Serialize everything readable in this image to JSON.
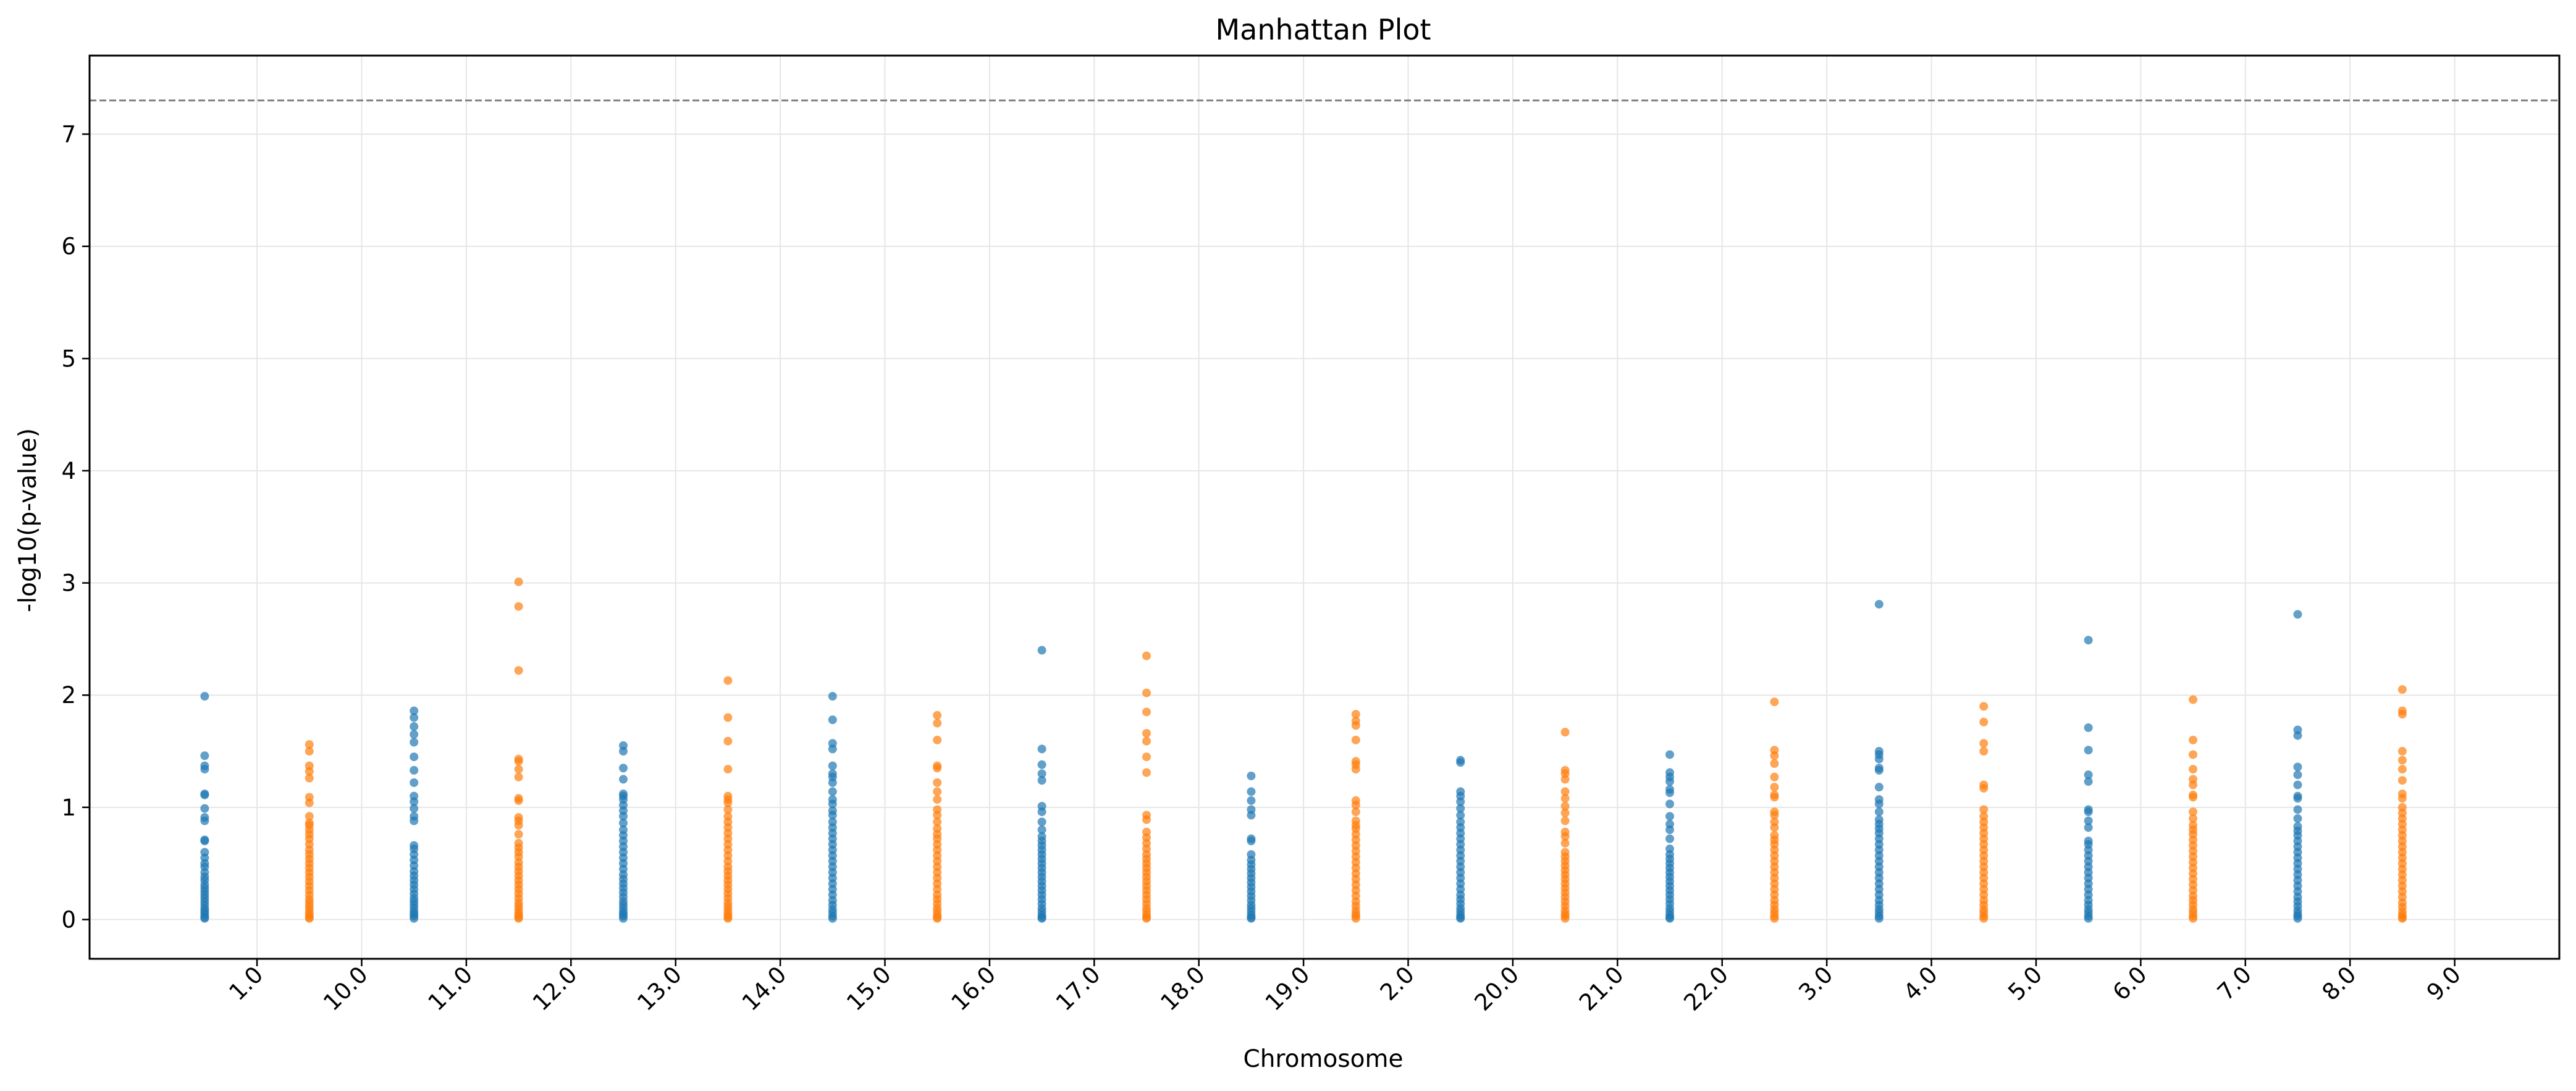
{
  "chart_data": {
    "type": "scatter",
    "title": "Manhattan Plot",
    "xlabel": "Chromosome",
    "ylabel": "-log10(p-value)",
    "x_tick_labels": [
      "1.0",
      "10.0",
      "11.0",
      "12.0",
      "13.0",
      "14.0",
      "15.0",
      "16.0",
      "17.0",
      "18.0",
      "19.0",
      "2.0",
      "20.0",
      "21.0",
      "22.0",
      "3.0",
      "4.0",
      "5.0",
      "6.0",
      "7.0",
      "8.0",
      "9.0"
    ],
    "x_tick_values": [
      1.5,
      2.5,
      3.5,
      4.5,
      5.5,
      6.5,
      7.5,
      8.5,
      9.5,
      10.5,
      11.5,
      12.5,
      13.5,
      14.5,
      15.5,
      16.5,
      17.5,
      18.5,
      19.5,
      20.5,
      21.5,
      22.5
    ],
    "y_ticks": [
      0,
      1,
      2,
      3,
      4,
      5,
      6,
      7
    ],
    "xlim": [
      -0.1,
      23.5
    ],
    "ylim": [
      -0.35,
      7.7
    ],
    "threshold": 7.3,
    "grid": true,
    "colors": {
      "even": "#1f77b4",
      "odd": "#ff7f0e",
      "threshold": "#808080",
      "grid": "#e6e6e6"
    },
    "series": [
      {
        "name": "1",
        "x": 1,
        "color_key": "even",
        "values": [
          1.99,
          1.46,
          1.37,
          1.34,
          1.12,
          1.11,
          0.99,
          0.91,
          0.88,
          0.71,
          0.7,
          0.6,
          0.55,
          0.5,
          0.47,
          0.42,
          0.38,
          0.35,
          0.31,
          0.28,
          0.25,
          0.22,
          0.19,
          0.16,
          0.13,
          0.1,
          0.08,
          0.06,
          0.04,
          0.02,
          0.01
        ]
      },
      {
        "name": "10",
        "x": 2,
        "color_key": "odd",
        "values": [
          1.56,
          1.5,
          1.37,
          1.32,
          1.26,
          1.09,
          1.04,
          0.92,
          0.86,
          0.84,
          0.8,
          0.76,
          0.72,
          0.67,
          0.62,
          0.58,
          0.54,
          0.5,
          0.46,
          0.42,
          0.38,
          0.34,
          0.3,
          0.26,
          0.22,
          0.18,
          0.15,
          0.12,
          0.09,
          0.06,
          0.04,
          0.02,
          0.01
        ]
      },
      {
        "name": "11",
        "x": 3,
        "color_key": "even",
        "values": [
          1.86,
          1.8,
          1.72,
          1.65,
          1.58,
          1.45,
          1.33,
          1.22,
          1.1,
          1.05,
          0.99,
          0.92,
          0.88,
          0.66,
          0.63,
          0.58,
          0.53,
          0.48,
          0.43,
          0.39,
          0.35,
          0.31,
          0.27,
          0.23,
          0.19,
          0.16,
          0.13,
          0.1,
          0.07,
          0.05,
          0.03,
          0.01
        ]
      },
      {
        "name": "12",
        "x": 4,
        "color_key": "odd",
        "values": [
          3.01,
          2.79,
          2.22,
          1.43,
          1.41,
          1.34,
          1.27,
          1.08,
          1.06,
          0.91,
          0.88,
          0.84,
          0.76,
          0.68,
          0.64,
          0.6,
          0.56,
          0.51,
          0.47,
          0.43,
          0.39,
          0.35,
          0.31,
          0.27,
          0.23,
          0.19,
          0.15,
          0.12,
          0.09,
          0.06,
          0.04,
          0.02,
          0.01
        ]
      },
      {
        "name": "13",
        "x": 5,
        "color_key": "even",
        "values": [
          1.55,
          1.5,
          1.35,
          1.25,
          1.12,
          1.1,
          1.07,
          1.02,
          0.97,
          0.92,
          0.86,
          0.8,
          0.75,
          0.7,
          0.65,
          0.6,
          0.55,
          0.5,
          0.45,
          0.4,
          0.36,
          0.32,
          0.28,
          0.24,
          0.2,
          0.16,
          0.13,
          0.1,
          0.07,
          0.05,
          0.03,
          0.01
        ]
      },
      {
        "name": "14",
        "x": 6,
        "color_key": "odd",
        "values": [
          2.13,
          1.8,
          1.59,
          1.34,
          1.1,
          1.07,
          1.04,
          0.98,
          0.92,
          0.87,
          0.82,
          0.77,
          0.72,
          0.67,
          0.62,
          0.57,
          0.52,
          0.47,
          0.43,
          0.39,
          0.35,
          0.31,
          0.27,
          0.23,
          0.19,
          0.15,
          0.12,
          0.09,
          0.06,
          0.04,
          0.02,
          0.01
        ]
      },
      {
        "name": "15",
        "x": 7,
        "color_key": "even",
        "values": [
          1.99,
          1.78,
          1.57,
          1.52,
          1.37,
          1.3,
          1.27,
          1.22,
          1.14,
          1.07,
          1.03,
          0.97,
          0.93,
          0.87,
          0.82,
          0.77,
          0.72,
          0.67,
          0.62,
          0.57,
          0.52,
          0.47,
          0.42,
          0.37,
          0.32,
          0.27,
          0.22,
          0.17,
          0.13,
          0.09,
          0.06,
          0.03,
          0.01
        ]
      },
      {
        "name": "16",
        "x": 8,
        "color_key": "odd",
        "values": [
          1.82,
          1.75,
          1.6,
          1.37,
          1.35,
          1.22,
          1.14,
          1.07,
          0.98,
          0.93,
          0.87,
          0.81,
          0.76,
          0.72,
          0.67,
          0.62,
          0.57,
          0.52,
          0.47,
          0.42,
          0.37,
          0.32,
          0.27,
          0.22,
          0.18,
          0.14,
          0.1,
          0.07,
          0.04,
          0.02,
          0.01
        ]
      },
      {
        "name": "17",
        "x": 9,
        "color_key": "even",
        "values": [
          2.4,
          1.52,
          1.38,
          1.3,
          1.24,
          1.01,
          0.96,
          0.87,
          0.8,
          0.74,
          0.7,
          0.66,
          0.62,
          0.58,
          0.54,
          0.5,
          0.46,
          0.42,
          0.38,
          0.34,
          0.3,
          0.26,
          0.22,
          0.18,
          0.14,
          0.1,
          0.07,
          0.04,
          0.02,
          0.01
        ]
      },
      {
        "name": "18",
        "x": 10,
        "color_key": "odd",
        "values": [
          2.35,
          2.02,
          1.85,
          1.66,
          1.59,
          1.45,
          1.31,
          0.93,
          0.89,
          0.78,
          0.73,
          0.68,
          0.63,
          0.58,
          0.54,
          0.5,
          0.46,
          0.42,
          0.38,
          0.34,
          0.3,
          0.26,
          0.22,
          0.18,
          0.14,
          0.1,
          0.07,
          0.04,
          0.02,
          0.01
        ]
      },
      {
        "name": "19",
        "x": 11,
        "color_key": "even",
        "values": [
          1.28,
          1.14,
          1.06,
          0.98,
          0.93,
          0.72,
          0.7,
          0.58,
          0.53,
          0.49,
          0.45,
          0.41,
          0.37,
          0.33,
          0.29,
          0.25,
          0.21,
          0.17,
          0.13,
          0.1,
          0.07,
          0.04,
          0.02,
          0.01
        ]
      },
      {
        "name": "2",
        "x": 12,
        "color_key": "odd",
        "values": [
          1.83,
          1.77,
          1.73,
          1.6,
          1.41,
          1.38,
          1.34,
          1.06,
          1.02,
          0.96,
          0.88,
          0.84,
          0.81,
          0.76,
          0.71,
          0.66,
          0.61,
          0.56,
          0.51,
          0.46,
          0.41,
          0.36,
          0.31,
          0.26,
          0.21,
          0.16,
          0.12,
          0.08,
          0.05,
          0.03,
          0.01
        ]
      },
      {
        "name": "20",
        "x": 13,
        "color_key": "even",
        "values": [
          1.42,
          1.4,
          1.14,
          1.1,
          1.05,
          0.99,
          0.93,
          0.87,
          0.82,
          0.77,
          0.72,
          0.67,
          0.62,
          0.57,
          0.52,
          0.47,
          0.42,
          0.37,
          0.32,
          0.27,
          0.22,
          0.18,
          0.14,
          0.1,
          0.07,
          0.04,
          0.02,
          0.01
        ]
      },
      {
        "name": "21",
        "x": 14,
        "color_key": "odd",
        "values": [
          1.67,
          1.33,
          1.3,
          1.25,
          1.14,
          1.08,
          1.01,
          0.95,
          0.88,
          0.78,
          0.74,
          0.68,
          0.6,
          0.56,
          0.52,
          0.48,
          0.44,
          0.4,
          0.36,
          0.32,
          0.28,
          0.24,
          0.2,
          0.16,
          0.12,
          0.08,
          0.05,
          0.03,
          0.01
        ]
      },
      {
        "name": "22",
        "x": 15,
        "color_key": "even",
        "values": [
          1.47,
          1.31,
          1.27,
          1.23,
          1.16,
          1.13,
          1.03,
          0.92,
          0.85,
          0.8,
          0.72,
          0.63,
          0.58,
          0.54,
          0.5,
          0.46,
          0.42,
          0.38,
          0.34,
          0.3,
          0.26,
          0.22,
          0.18,
          0.14,
          0.1,
          0.07,
          0.04,
          0.02,
          0.01
        ]
      },
      {
        "name": "3",
        "x": 16,
        "color_key": "odd",
        "values": [
          1.94,
          1.51,
          1.46,
          1.39,
          1.27,
          1.18,
          1.11,
          1.09,
          0.96,
          0.93,
          0.87,
          0.82,
          0.75,
          0.71,
          0.67,
          0.62,
          0.57,
          0.52,
          0.47,
          0.42,
          0.37,
          0.32,
          0.27,
          0.22,
          0.17,
          0.13,
          0.09,
          0.06,
          0.03,
          0.01
        ]
      },
      {
        "name": "4",
        "x": 17,
        "color_key": "even",
        "values": [
          2.81,
          1.5,
          1.47,
          1.43,
          1.35,
          1.33,
          1.18,
          1.07,
          1.03,
          0.96,
          0.89,
          0.85,
          0.81,
          0.77,
          0.72,
          0.67,
          0.62,
          0.57,
          0.52,
          0.47,
          0.42,
          0.37,
          0.32,
          0.27,
          0.22,
          0.17,
          0.13,
          0.09,
          0.06,
          0.03,
          0.01
        ]
      },
      {
        "name": "5",
        "x": 18,
        "color_key": "odd",
        "values": [
          1.9,
          1.76,
          1.57,
          1.5,
          1.2,
          1.17,
          0.98,
          0.92,
          0.87,
          0.82,
          0.77,
          0.72,
          0.67,
          0.62,
          0.57,
          0.52,
          0.47,
          0.42,
          0.37,
          0.32,
          0.27,
          0.22,
          0.17,
          0.13,
          0.09,
          0.06,
          0.03,
          0.01
        ]
      },
      {
        "name": "6",
        "x": 19,
        "color_key": "even",
        "values": [
          2.49,
          1.71,
          1.51,
          1.29,
          1.23,
          0.98,
          0.96,
          0.88,
          0.82,
          0.7,
          0.67,
          0.62,
          0.57,
          0.52,
          0.47,
          0.42,
          0.37,
          0.32,
          0.27,
          0.22,
          0.17,
          0.13,
          0.09,
          0.06,
          0.03,
          0.01
        ]
      },
      {
        "name": "7",
        "x": 20,
        "color_key": "odd",
        "values": [
          1.96,
          1.6,
          1.47,
          1.34,
          1.25,
          1.2,
          1.11,
          1.09,
          0.96,
          0.9,
          0.84,
          0.8,
          0.76,
          0.71,
          0.66,
          0.61,
          0.56,
          0.51,
          0.46,
          0.41,
          0.36,
          0.31,
          0.26,
          0.21,
          0.17,
          0.13,
          0.09,
          0.06,
          0.03,
          0.01
        ]
      },
      {
        "name": "8",
        "x": 21,
        "color_key": "even",
        "values": [
          2.72,
          1.69,
          1.64,
          1.36,
          1.29,
          1.2,
          1.1,
          1.08,
          0.98,
          0.9,
          0.83,
          0.79,
          0.75,
          0.7,
          0.65,
          0.6,
          0.55,
          0.5,
          0.45,
          0.4,
          0.35,
          0.3,
          0.25,
          0.2,
          0.16,
          0.12,
          0.08,
          0.05,
          0.03,
          0.01
        ]
      },
      {
        "name": "9",
        "x": 22,
        "color_key": "odd",
        "values": [
          2.05,
          1.86,
          1.83,
          1.5,
          1.42,
          1.34,
          1.24,
          1.12,
          1.08,
          1.0,
          0.95,
          0.9,
          0.85,
          0.8,
          0.75,
          0.7,
          0.65,
          0.6,
          0.55,
          0.5,
          0.45,
          0.4,
          0.35,
          0.3,
          0.25,
          0.2,
          0.15,
          0.11,
          0.07,
          0.04,
          0.02,
          0.01
        ]
      }
    ]
  }
}
